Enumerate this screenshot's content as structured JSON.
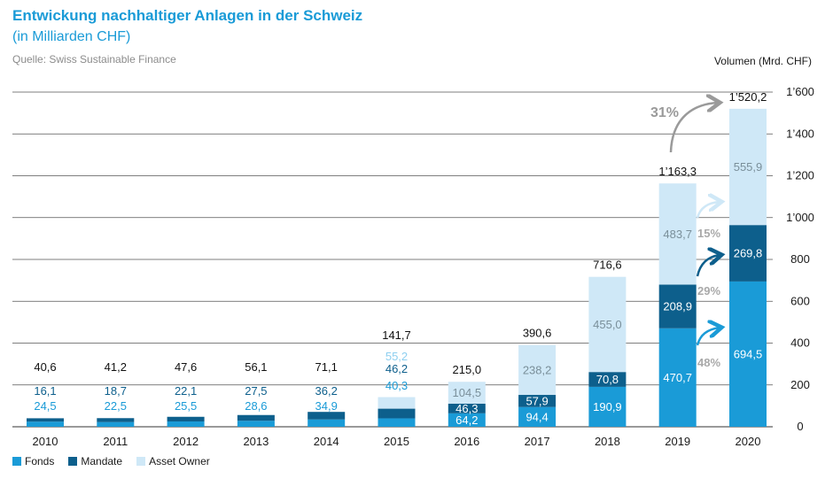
{
  "header": {
    "title": "Entwickung nachhaltiger Anlagen in der Schweiz",
    "subtitle": "(in Milliarden CHF)",
    "source": "Quelle: Swiss Sustainable Finance",
    "unit_label": "Volumen (Mrd. CHF)"
  },
  "colors": {
    "fonds": "#1a9bd7",
    "mandate": "#0d5f8c",
    "asset_owner": "#cfe8f7",
    "grid": "#555555",
    "arrow_total": "#9a9a9a",
    "arrow_light": "#cfe8f7"
  },
  "chart_data": {
    "type": "bar",
    "stacked": true,
    "categories": [
      "2010",
      "2011",
      "2012",
      "2013",
      "2014",
      "2015",
      "2016",
      "2017",
      "2018",
      "2019",
      "2020"
    ],
    "series": [
      {
        "name": "Fonds",
        "values": [
          24.5,
          22.5,
          25.5,
          28.6,
          34.9,
          40.3,
          64.2,
          94.4,
          190.9,
          470.7,
          694.5
        ],
        "labels": [
          "24,5",
          "22,5",
          "25,5",
          "28,6",
          "34,9",
          "40,3",
          "64,2",
          "94,4",
          "190,9",
          "470,7",
          "694,5"
        ]
      },
      {
        "name": "Mandate",
        "values": [
          16.1,
          18.7,
          22.1,
          27.5,
          36.2,
          46.2,
          46.3,
          57.9,
          70.8,
          208.9,
          269.8
        ],
        "labels": [
          "16,1",
          "18,7",
          "22,1",
          "27,5",
          "36,2",
          "46,2",
          "46,3",
          "57,9",
          "70,8",
          "208,9",
          "269,8"
        ]
      },
      {
        "name": "Asset Owner",
        "values": [
          0,
          0,
          0,
          0,
          0,
          55.2,
          104.5,
          238.2,
          455.0,
          483.7,
          555.9
        ],
        "labels": [
          "",
          "",
          "",
          "",
          "",
          "55,2",
          "104,5",
          "238,2",
          "455,0",
          "483,7",
          "555,9"
        ]
      }
    ],
    "totals": [
      40.6,
      41.2,
      47.6,
      56.1,
      71.1,
      141.7,
      215.0,
      390.6,
      716.6,
      1163.3,
      1520.2
    ],
    "total_labels": [
      "40,6",
      "41,2",
      "47,6",
      "56,1",
      "71,1",
      "141,7",
      "215,0",
      "390,6",
      "716,6",
      "1’163,3",
      "1’520,2"
    ],
    "ylim": [
      0,
      1600
    ],
    "yticks": [
      0,
      200,
      400,
      600,
      800,
      1000,
      1200,
      1400,
      1600
    ],
    "ytick_labels": [
      "0",
      "200",
      "400",
      "600",
      "800",
      "1’000",
      "1’200",
      "1’400",
      "1’600"
    ],
    "y_axis_side": "right",
    "grid": true,
    "legend_position": "bottom-left",
    "annotations": [
      {
        "text": "31%",
        "from": "2019",
        "to": "2020",
        "segment": "total"
      },
      {
        "text": "15%",
        "from": "2019",
        "to": "2020",
        "segment": "Asset Owner"
      },
      {
        "text": "29%",
        "from": "2019",
        "to": "2020",
        "segment": "Mandate"
      },
      {
        "text": "48%",
        "from": "2019",
        "to": "2020",
        "segment": "Fonds"
      }
    ]
  }
}
